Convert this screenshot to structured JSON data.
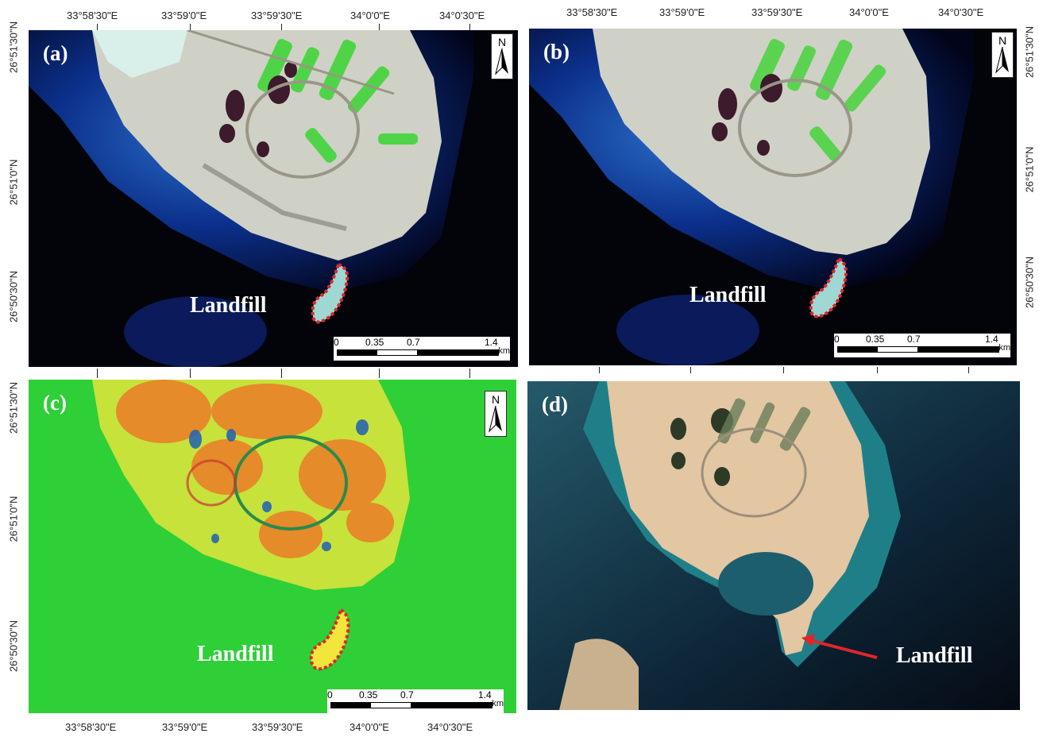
{
  "panels": [
    {
      "id": "a",
      "label": "(a)",
      "landfill_label": "Landfill"
    },
    {
      "id": "b",
      "label": "(b)",
      "landfill_label": "Landfill"
    },
    {
      "id": "c",
      "label": "(c)",
      "landfill_label": "Landfill"
    },
    {
      "id": "d",
      "label": "(d)",
      "landfill_label": "Landfill"
    }
  ],
  "north_arrow": "N",
  "scale_bar": {
    "ticks": [
      "0",
      "0.35",
      "0.7",
      "1.4"
    ],
    "unit": "km"
  },
  "longitude_labels": [
    "33°58'30\"E",
    "33°59'0\"E",
    "33°59'30\"E",
    "34°0'0\"E",
    "34°0'30\"E"
  ],
  "latitude_labels": [
    "26°51'30\"N",
    "26°51'0\"N",
    "26°50'30\"N"
  ],
  "colors": {
    "landfill_outline": "#e0262a",
    "arrow": "#e0262a",
    "sea_dark": "#05070d",
    "vegetation": "#39c93a"
  }
}
